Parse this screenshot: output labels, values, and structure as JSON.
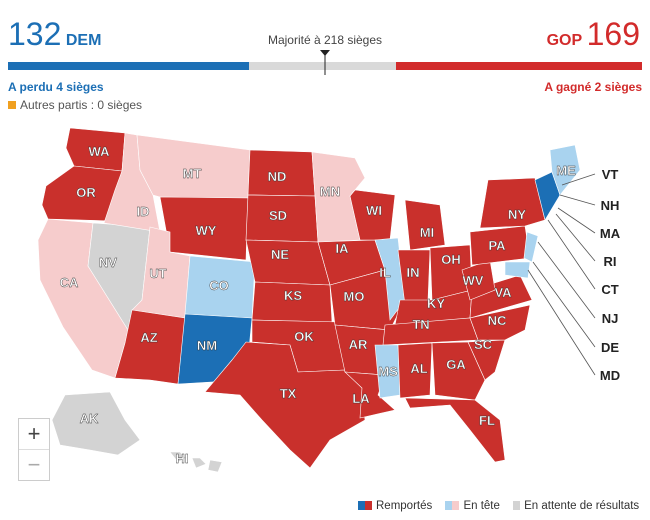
{
  "header": {
    "dem_seats": "132",
    "dem_label": "DEM",
    "gop_label": "GOP",
    "gop_seats": "169",
    "majority_text": "Majorité à 218 sièges",
    "dem_change": "A perdu 4 sièges",
    "gop_change": "A gagné 2 sièges",
    "others_text": "Autres partis : 0 sièges"
  },
  "colors": {
    "dem_won": "#1c6fb5",
    "dem_leading": "#a9d3ef",
    "gop_won": "#c9302c",
    "gop_leading": "#f6cccc",
    "pending": "#d3d3d3",
    "others": "#f0a020"
  },
  "seat_bar": {
    "total_seats": 435,
    "dem_seats": 132,
    "gop_seats": 169,
    "majority": 218
  },
  "map": {
    "state_labels": [
      "WA",
      "OR",
      "CA",
      "NV",
      "ID",
      "MT",
      "WY",
      "UT",
      "AZ",
      "CO",
      "NM",
      "ND",
      "SD",
      "NE",
      "KS",
      "OK",
      "TX",
      "MN",
      "IA",
      "MO",
      "AR",
      "LA",
      "WI",
      "IL",
      "MI",
      "IN",
      "OH",
      "KY",
      "TN",
      "MS",
      "AL",
      "GA",
      "FL",
      "SC",
      "NC",
      "VA",
      "WV",
      "PA",
      "NY",
      "ME",
      "AK",
      "HI"
    ],
    "callout_labels": [
      "VT",
      "NH",
      "MA",
      "RI",
      "CT",
      "NJ",
      "DE",
      "MD"
    ]
  },
  "zoom": {
    "in_label": "+",
    "out_label": "−"
  },
  "legend": {
    "won": "Remportés",
    "leading": "En tête",
    "pending": "En attente de résultats"
  }
}
